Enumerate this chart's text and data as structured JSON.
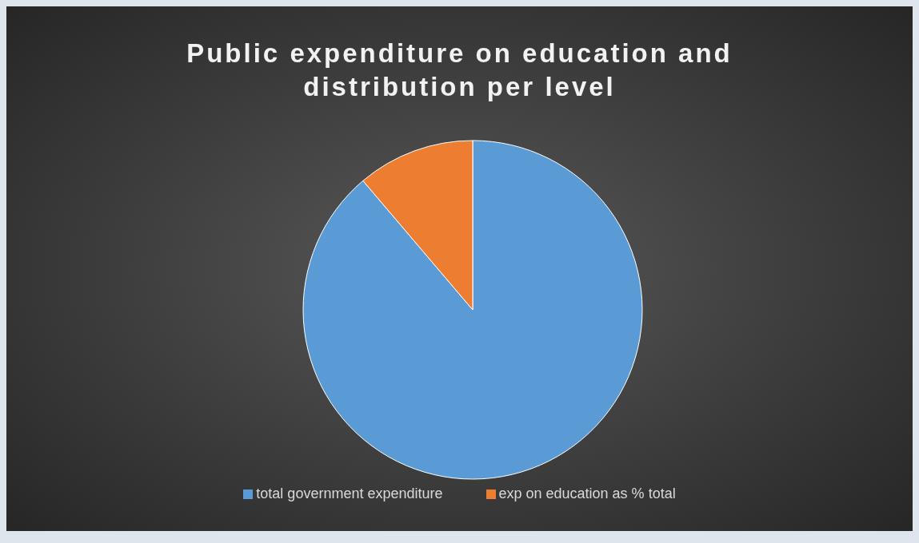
{
  "chart_data": {
    "type": "pie",
    "title": "Public expenditure on education and distribution per level",
    "categories": [
      "total government expenditure",
      "exp on education as % total"
    ],
    "values": [
      88.8,
      11.2
    ],
    "colors": [
      "#5b9bd5",
      "#ed7d31"
    ],
    "legend": "bottom"
  }
}
